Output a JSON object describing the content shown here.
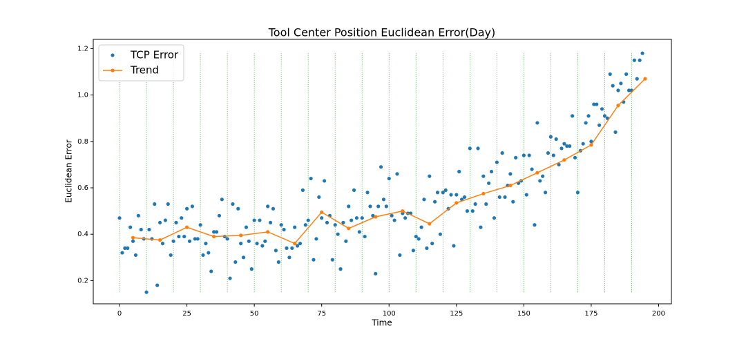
{
  "chart_data": {
    "type": "scatter",
    "title": "Tool Center Position Euclidean Error(Day)",
    "x_label": "Time",
    "y_label": "Euclidean Error",
    "xlim": [
      -9.75,
      204.75
    ],
    "ylim": [
      0.1,
      1.24
    ],
    "xticks": [
      0,
      25,
      50,
      75,
      100,
      125,
      150,
      175,
      200
    ],
    "yticks": [
      0.2,
      0.4,
      0.6,
      0.8,
      {
        "value": 1,
        "label": "1.0"
      },
      1.2
    ],
    "legend": "upper-left",
    "vlines": {
      "x": [
        0,
        10,
        20,
        30,
        40,
        50,
        60,
        70,
        80,
        90,
        100,
        110,
        120,
        130,
        140,
        150,
        160,
        170,
        180,
        190
      ],
      "ymin": 0.15,
      "ymax": 1.18,
      "color": "#2ca02c"
    },
    "series": [
      {
        "name": "TCP Error",
        "type": "scatter",
        "color": "#1f77b4",
        "x": [
          0,
          1,
          2,
          3,
          4,
          5,
          6,
          7,
          8,
          9,
          10,
          11,
          12,
          13,
          14,
          15,
          16,
          17,
          18,
          19,
          20,
          21,
          22,
          23,
          24,
          25,
          26,
          27,
          28,
          29,
          30,
          31,
          32,
          33,
          34,
          35,
          36,
          37,
          38,
          39,
          40,
          41,
          42,
          43,
          44,
          45,
          46,
          47,
          48,
          49,
          50,
          51,
          52,
          53,
          54,
          55,
          56,
          57,
          58,
          59,
          60,
          61,
          62,
          63,
          64,
          65,
          66,
          67,
          68,
          69,
          70,
          71,
          72,
          73,
          74,
          75,
          76,
          77,
          78,
          79,
          80,
          81,
          82,
          83,
          84,
          85,
          86,
          87,
          88,
          89,
          90,
          91,
          92,
          93,
          94,
          95,
          96,
          97,
          98,
          99,
          100,
          101,
          102,
          103,
          104,
          105,
          106,
          107,
          108,
          109,
          110,
          111,
          112,
          113,
          114,
          115,
          116,
          117,
          118,
          119,
          120,
          121,
          122,
          123,
          124,
          125,
          126,
          127,
          128,
          129,
          130,
          131,
          132,
          133,
          134,
          135,
          136,
          137,
          138,
          139,
          140,
          141,
          142,
          143,
          144,
          145,
          146,
          147,
          148,
          149,
          150,
          151,
          152,
          153,
          154,
          155,
          156,
          157,
          158,
          159,
          160,
          161,
          162,
          163,
          164,
          165,
          166,
          167,
          168,
          169,
          170,
          171,
          172,
          173,
          174,
          175,
          176,
          177,
          178,
          179,
          180,
          181,
          182,
          183,
          184,
          185,
          186,
          187,
          188,
          189,
          190,
          191,
          192,
          193,
          194
        ],
        "values": [
          0.47,
          0.32,
          0.34,
          0.34,
          0.43,
          0.37,
          0.31,
          0.48,
          0.42,
          0.38,
          0.15,
          0.42,
          0.38,
          0.53,
          0.18,
          0.45,
          0.36,
          0.46,
          0.53,
          0.31,
          0.37,
          0.45,
          0.39,
          0.47,
          0.39,
          0.51,
          0.37,
          0.52,
          0.38,
          0.38,
          0.44,
          0.31,
          0.36,
          0.32,
          0.24,
          0.41,
          0.41,
          0.48,
          0.55,
          0.39,
          0.38,
          0.21,
          0.53,
          0.28,
          0.51,
          0.36,
          0.3,
          0.43,
          0.37,
          0.25,
          0.46,
          0.36,
          0.46,
          0.35,
          0.37,
          0.52,
          0.45,
          0.51,
          0.33,
          0.28,
          0.44,
          0.42,
          0.34,
          0.3,
          0.34,
          0.43,
          0.35,
          0.36,
          0.59,
          0.44,
          0.46,
          0.64,
          0.29,
          0.38,
          0.56,
          0.47,
          0.63,
          0.45,
          0.48,
          0.29,
          0.44,
          0.4,
          0.25,
          0.45,
          0.37,
          0.52,
          0.46,
          0.59,
          0.47,
          0.41,
          0.47,
          0.39,
          0.58,
          0.52,
          0.48,
          0.23,
          0.52,
          0.69,
          0.55,
          0.52,
          0.64,
          0.48,
          0.46,
          0.66,
          0.31,
          0.49,
          0.47,
          0.49,
          0.49,
          0.33,
          0.39,
          0.38,
          0.43,
          0.55,
          0.34,
          0.65,
          0.36,
          0.54,
          0.58,
          0.4,
          0.58,
          0.59,
          0.51,
          0.57,
          0.35,
          0.57,
          0.67,
          0.55,
          0.56,
          0.5,
          0.77,
          0.5,
          0.53,
          0.77,
          0.43,
          0.65,
          0.53,
          0.62,
          0.67,
          0.47,
          0.71,
          0.56,
          0.75,
          0.56,
          0.61,
          0.66,
          0.54,
          0.73,
          0.62,
          0.63,
          0.74,
          0.57,
          0.74,
          0.68,
          0.44,
          0.88,
          0.63,
          0.65,
          0.58,
          0.75,
          0.82,
          0.74,
          0.81,
          0.7,
          0.77,
          0.79,
          0.78,
          0.78,
          0.91,
          0.73,
          0.58,
          0.76,
          0.79,
          0.88,
          0.91,
          0.8,
          0.96,
          0.96,
          0.87,
          0.94,
          0.91,
          0.9,
          1.09,
          1.04,
          0.84,
          1.02,
          1.05,
          0.97,
          1.09,
          1.02,
          1.02,
          1.15,
          1.07,
          1.15,
          1.18
        ]
      },
      {
        "name": "Trend",
        "type": "line",
        "color": "#ff7f0e",
        "x": [
          5,
          15,
          25,
          35,
          45,
          55,
          65,
          75,
          85,
          95,
          105,
          115,
          125,
          135,
          145,
          155,
          165,
          175,
          185,
          195
        ],
        "values": [
          0.385,
          0.375,
          0.43,
          0.39,
          0.395,
          0.41,
          0.36,
          0.495,
          0.425,
          0.475,
          0.5,
          0.445,
          0.535,
          0.575,
          0.61,
          0.665,
          0.72,
          0.785,
          0.955,
          1.07
        ]
      }
    ]
  }
}
